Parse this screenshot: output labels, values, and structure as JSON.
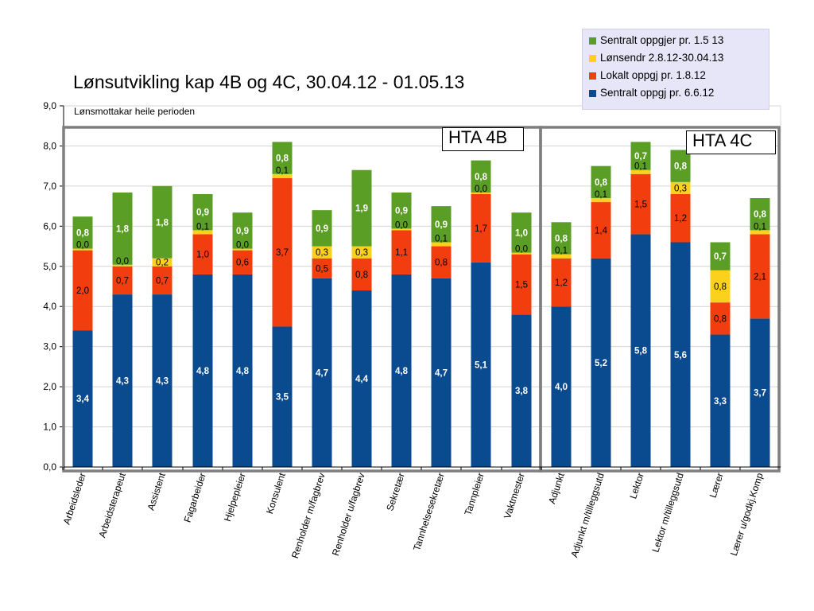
{
  "chart_data": {
    "type": "bar",
    "stacked": true,
    "title": "Lønsutvikling kap 4B og 4C,  30.04.12 - 01.05.13",
    "subtitle": "Lønsmottakar heile perioden",
    "ylim": [
      0,
      9
    ],
    "yticks": [
      "0,0",
      "1,0",
      "2,0",
      "3,0",
      "4,0",
      "5,0",
      "6,0",
      "7,0",
      "8,0",
      "9,0"
    ],
    "legend_position": "top-right",
    "groups": [
      {
        "label": "HTA 4B",
        "category_count": 12
      },
      {
        "label": "HTA 4C",
        "category_count": 6
      }
    ],
    "categories": [
      "Arbeidsleder",
      "Arbeidsterapeut",
      "Assistent",
      "Fagarbeider",
      "Hjelpepleier",
      "Konsulent",
      "Renholder m/fagbrev",
      "Renholder u/fagbrev",
      "Sekretær",
      "Tannhelsesekretær",
      "Tannpleier",
      "Vaktmester",
      "Adjunkt",
      "Adjunkt m/tilleggsutd",
      "Lektor",
      "Lektor m/tilleggsutd",
      "Lærer",
      "Lærer u/godkj.Komp"
    ],
    "series": [
      {
        "name": "Sentralt oppgj pr. 6.6.12",
        "color": "#0a4a8f",
        "label_color": "#ffffff",
        "label_bold": true,
        "values": [
          3.4,
          4.3,
          4.3,
          4.8,
          4.8,
          3.5,
          4.7,
          4.4,
          4.8,
          4.7,
          5.1,
          3.8,
          4.0,
          5.2,
          5.8,
          5.6,
          3.3,
          3.7
        ],
        "labels": [
          "3,4",
          "4,3",
          "4,3",
          "4,8",
          "4,8",
          "3,5",
          "4,7",
          "4,4",
          "4,8",
          "4,7",
          "5,1",
          "3,8",
          "4,0",
          "5,2",
          "5,8",
          "5,6",
          "3,3",
          "3,7"
        ]
      },
      {
        "name": "Lokalt oppgj pr. 1.8.12",
        "color": "#f23d0f",
        "label_color": "#000000",
        "label_bold": false,
        "values": [
          2.0,
          0.7,
          0.7,
          1.0,
          0.6,
          3.7,
          0.5,
          0.8,
          1.1,
          0.8,
          1.7,
          1.5,
          1.2,
          1.4,
          1.5,
          1.2,
          0.8,
          2.1
        ],
        "labels": [
          "2,0",
          "0,7",
          "0,7",
          "1,0",
          "0,6",
          "3,7",
          "0,5",
          "0,8",
          "1,1",
          "0,8",
          "1,7",
          "1,5",
          "1,2",
          "1,4",
          "1,5",
          "1,2",
          "0,8",
          "2,1"
        ]
      },
      {
        "name": "Lønsendr 2.8.12-30.04.13",
        "color": "#fcd11d",
        "label_color": "#000000",
        "label_bold": false,
        "values": [
          0.04,
          0.04,
          0.2,
          0.1,
          0.04,
          0.1,
          0.3,
          0.3,
          0.04,
          0.1,
          0.04,
          0.04,
          0.1,
          0.1,
          0.1,
          0.3,
          0.8,
          0.1
        ],
        "labels": [
          "0,0",
          "0,0",
          "0,2",
          "0,1",
          "0,0",
          "0,1",
          "0,3",
          "0,3",
          "0,0",
          "0,1",
          "0,0",
          "0,0",
          "0,1",
          "0,1",
          "0,1",
          "0,3",
          "0,8",
          "0,1"
        ]
      },
      {
        "name": "Sentralt oppgjer pr. 1.5 13",
        "color": "#5b9e25",
        "label_color": "#ffffff",
        "label_bold": true,
        "values": [
          0.8,
          1.8,
          1.8,
          0.9,
          0.9,
          0.8,
          0.9,
          1.9,
          0.9,
          0.9,
          0.8,
          1.0,
          0.8,
          0.8,
          0.7,
          0.8,
          0.7,
          0.8
        ],
        "labels": [
          "0,8",
          "1,8",
          "1,8",
          "0,9",
          "0,9",
          "0,8",
          "0,9",
          "1,9",
          "0,9",
          "0,9",
          "0,8",
          "1,0",
          "0,8",
          "0,8",
          "0,7",
          "0,8",
          "0,7",
          "0,8"
        ]
      }
    ]
  },
  "legend_order": [
    3,
    2,
    1,
    0
  ]
}
